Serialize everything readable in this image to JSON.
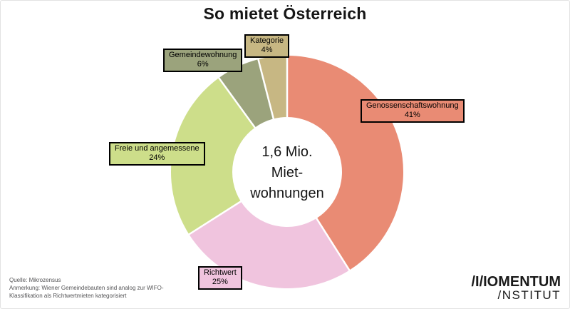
{
  "chart_data": {
    "type": "pie",
    "donut": true,
    "direction": "clockwise",
    "start_angle_deg": 0,
    "title": "So mietet Österreich",
    "center_lines": [
      "1,6 Mio.",
      "Miet-",
      "wohnungen"
    ],
    "hole_label": "1,6 Mio. Mietwohnungen",
    "slices": [
      {
        "label": "Genossenschaftswohnung",
        "value": 41,
        "pct": "41%",
        "color": "#e98b74"
      },
      {
        "label": "Richtwert",
        "value": 25,
        "pct": "25%",
        "color": "#f0c4de"
      },
      {
        "label": "Freie und angemessene",
        "value": 24,
        "pct": "24%",
        "color": "#cdde8a"
      },
      {
        "label": "Gemeindewohnung",
        "value": 6,
        "pct": "6%",
        "color": "#9ba37c"
      },
      {
        "label": "Kategorie",
        "value": 4,
        "pct": "4%",
        "color": "#c7b783"
      }
    ],
    "separator_color": "#ffffff",
    "hole_color": "#ffffff"
  },
  "footnotes": {
    "lines": [
      "Quelle: Mikrozensus",
      "Anmerkung: Wiener Gemeindebauten sind analog zur WIFO-",
      "Klassifikation als Richtwertmieten kategorisiert"
    ]
  },
  "logo": {
    "alt": "Momentum Institut",
    "line1": "/I/IOMENTUM",
    "line2": "/NSTITUT"
  }
}
